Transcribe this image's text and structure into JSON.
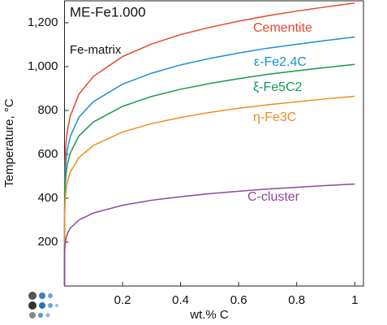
{
  "chart_data": {
    "type": "line",
    "title": "ME-Fe1.000",
    "annotation": "Fe-matrix",
    "x_label": "wt.% C",
    "y_label": "Temperature, °C",
    "x": [
      0,
      0.0005,
      0.002,
      0.005,
      0.01,
      0.02,
      0.05,
      0.1,
      0.2,
      0.3,
      0.4,
      0.5,
      0.6,
      0.7,
      0.8,
      0.9,
      1
    ],
    "series": [
      {
        "name": "Cementite",
        "color": "#e5472f",
        "values": [
          0,
          480,
          575,
          648,
          710,
          775,
          875,
          956,
          1046,
          1103,
          1146,
          1179,
          1207,
          1232,
          1253,
          1272,
          1290
        ]
      },
      {
        "name": "ε-Fe2.4C",
        "color": "#1b8fd2",
        "values": [
          0,
          422,
          506,
          570,
          624,
          682,
          770,
          841,
          920,
          970,
          1008,
          1037,
          1062,
          1084,
          1102,
          1119,
          1135
        ]
      },
      {
        "name": "ξ-Fe5C2",
        "color": "#169a4c",
        "values": [
          0,
          376,
          450,
          507,
          556,
          607,
          685,
          748,
          819,
          864,
          897,
          923,
          945,
          965,
          981,
          996,
          1010
        ]
      },
      {
        "name": "η-Fe3C",
        "color": "#f28a1c",
        "values": [
          0,
          322,
          386,
          434,
          476,
          520,
          586,
          641,
          702,
          740,
          768,
          791,
          810,
          826,
          840,
          853,
          865
        ]
      },
      {
        "name": "C-cluster",
        "color": "#8b479e",
        "values": [
          0,
          154,
          189,
          216,
          239,
          264,
          301,
          333,
          368,
          391,
          407,
          421,
          432,
          442,
          450,
          458,
          465
        ]
      }
    ],
    "xlim": [
      0,
      1.03
    ],
    "ylim": [
      0,
      1300
    ],
    "xticks": [
      0.2,
      0.4,
      0.6,
      0.8,
      1
    ],
    "yticks": [
      200,
      400,
      600,
      800,
      {
        "value": 1000,
        "label": "1,000"
      },
      {
        "value": 1200,
        "label": "1,200"
      }
    ]
  }
}
